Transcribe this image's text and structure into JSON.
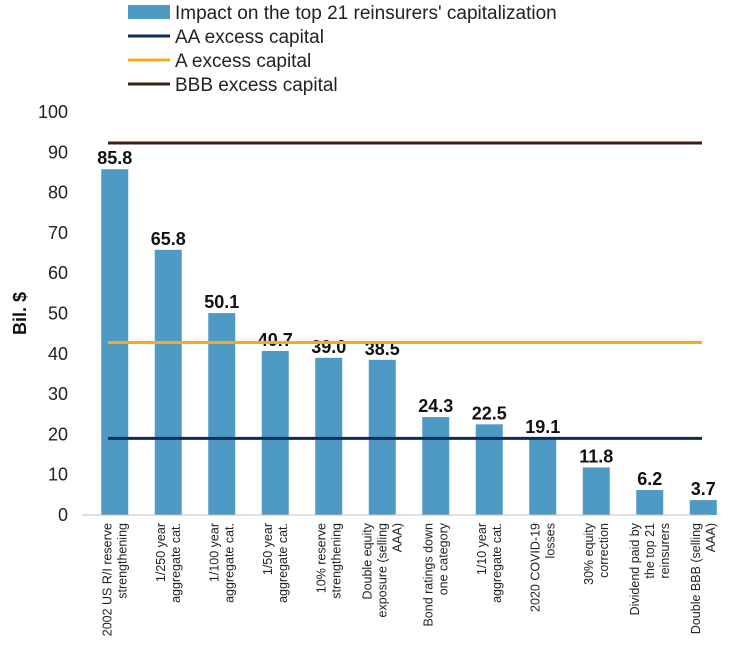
{
  "chart_data": {
    "type": "bar",
    "title": "",
    "xlabel": "",
    "ylabel": "Bil. $",
    "ylim": [
      0,
      100
    ],
    "yticks": [
      0,
      10,
      20,
      30,
      40,
      50,
      60,
      70,
      80,
      90,
      100
    ],
    "grid": false,
    "legend_position": "top",
    "categories": [
      [
        "2002 US R/I reserve",
        "strengthening"
      ],
      [
        "1/250 year",
        "aggregate cat."
      ],
      [
        "1/100 year",
        "aggregate cat."
      ],
      [
        "1/50 year",
        "aggregate cat."
      ],
      [
        "10% reserve",
        "strengthening"
      ],
      [
        "Double equity",
        "exposure (selling",
        "AAA)"
      ],
      [
        "Bond ratings down",
        "one category"
      ],
      [
        "1/10 year",
        "aggregate cat."
      ],
      [
        "2020 COVID-19",
        "losses"
      ],
      [
        "30% equity",
        "correction"
      ],
      [
        "Dividend paid by",
        "the top 21",
        "reinsurers"
      ],
      [
        "Double BBB (selling",
        "AAA)"
      ]
    ],
    "series": [
      {
        "name": "Impact on the top 21 reinsurers' capitalization",
        "kind": "bar",
        "color": "#4f9ac5",
        "values": [
          85.8,
          65.8,
          50.1,
          40.7,
          39.0,
          38.5,
          24.3,
          22.5,
          19.1,
          11.8,
          6.2,
          3.7
        ],
        "labels": [
          "85.8",
          "65.8",
          "50.1",
          "40.7",
          "39.0",
          "38.5",
          "24.3",
          "22.5",
          "19.1",
          "11.8",
          "6.2",
          "3.7"
        ]
      },
      {
        "name": "AA excess capital",
        "kind": "hline",
        "color": "#0d2c5e",
        "value": 19.0
      },
      {
        "name": "A excess capital",
        "kind": "hline",
        "color": "#f5ab1a",
        "value": 42.8
      },
      {
        "name": "BBB excess capital",
        "kind": "hline",
        "color": "#3e1f14",
        "value": 92.3
      }
    ]
  }
}
